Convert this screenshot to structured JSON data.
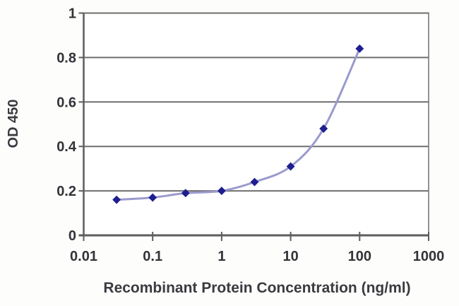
{
  "figure": {
    "kind": "elisa-standard-curve"
  },
  "chart_data": {
    "type": "line",
    "x_scale": "log10",
    "x": [
      0.03,
      0.1,
      0.3,
      1,
      3,
      10,
      30,
      100
    ],
    "series": [
      {
        "name": "OD 450",
        "values": [
          0.16,
          0.17,
          0.19,
          0.2,
          0.24,
          0.31,
          0.48,
          0.84
        ]
      }
    ],
    "title": "",
    "xlabel": "Recombinant Protein Concentration (ng/ml)",
    "ylabel": "OD 450",
    "xlim": [
      0.01,
      1000
    ],
    "ylim": [
      0,
      1
    ],
    "x_ticks": [
      "0.01",
      "0.1",
      "1",
      "10",
      "100",
      "1000"
    ],
    "y_ticks": [
      "0",
      "0.2",
      "0.4",
      "0.6",
      "0.8",
      "1"
    ],
    "grid": "horizontal",
    "legend_position": "none",
    "marker": "diamond",
    "line_smoothing": true,
    "colors": {
      "line": "#9a9ace",
      "marker": "#1e1e90",
      "gridline": "#6f6f6f",
      "border": "#949494",
      "axis": "#5d5d5d",
      "text": "#333338",
      "plot_background": "#ffffff"
    }
  }
}
